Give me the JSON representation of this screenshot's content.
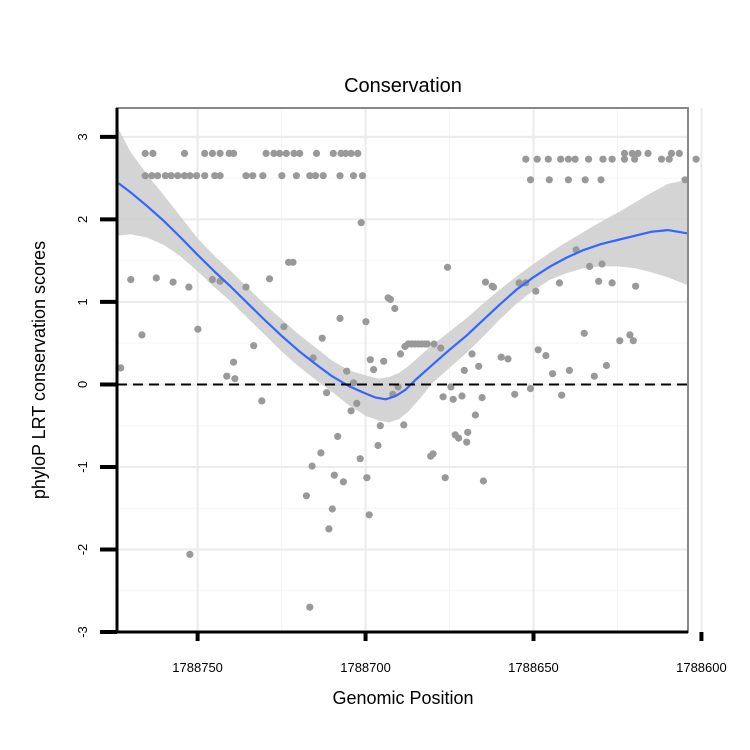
{
  "chart_data": {
    "type": "scatter",
    "title": "Conservation",
    "xlabel": "Genomic Position",
    "ylabel": "phyloP LRT conservation scores",
    "x_reversed": true,
    "xlim": [
      1788774,
      1788604
    ],
    "ylim": [
      -3,
      3.35
    ],
    "x_ticks": [
      1788750,
      1788700,
      1788650,
      1788600
    ],
    "x_tick_labels": [
      "1788750",
      "1788700",
      "1788650",
      "1788600"
    ],
    "y_ticks": [
      -3,
      -2,
      -1,
      0,
      1,
      2,
      3
    ],
    "y_tick_labels": [
      "-3",
      "-2",
      "-1",
      "0",
      "1",
      "2",
      "3"
    ],
    "reference_line": {
      "y": 0,
      "style": "dashed",
      "color": "#000000"
    },
    "colors": {
      "points": "#999999",
      "smooth_line": "#3366FF",
      "confidence_band": "#CCCCCC",
      "panel_border": "#888888",
      "grid_major": "#EBEBEB",
      "grid_minor": "#F5F5F5"
    },
    "series": [
      {
        "name": "phyloP scores",
        "kind": "points",
        "points": [
          [
            1788765.6,
            2.8
          ],
          [
            1788763.3,
            2.8
          ],
          [
            1788753.9,
            2.8
          ],
          [
            1788747.9,
            2.8
          ],
          [
            1788745.6,
            2.8
          ],
          [
            1788743.3,
            2.8
          ],
          [
            1788740.6,
            2.8
          ],
          [
            1788739.3,
            2.8
          ],
          [
            1788729.6,
            2.8
          ],
          [
            1788727.3,
            2.8
          ],
          [
            1788725.6,
            2.8
          ],
          [
            1788723.6,
            2.8
          ],
          [
            1788721.3,
            2.8
          ],
          [
            1788719.6,
            2.8
          ],
          [
            1788714.6,
            2.8
          ],
          [
            1788709.6,
            2.8
          ],
          [
            1788707.3,
            2.8
          ],
          [
            1788705.9,
            2.8
          ],
          [
            1788704.3,
            2.8
          ],
          [
            1788702.3,
            2.8
          ],
          [
            1788765.6,
            2.53
          ],
          [
            1788763.6,
            2.53
          ],
          [
            1788761.9,
            2.53
          ],
          [
            1788759.6,
            2.53
          ],
          [
            1788757.9,
            2.53
          ],
          [
            1788755.9,
            2.53
          ],
          [
            1788753.9,
            2.53
          ],
          [
            1788752.3,
            2.53
          ],
          [
            1788750.3,
            2.53
          ],
          [
            1788747.9,
            2.53
          ],
          [
            1788744.9,
            2.53
          ],
          [
            1788743.3,
            2.53
          ],
          [
            1788735.6,
            2.53
          ],
          [
            1788733.6,
            2.53
          ],
          [
            1788730.6,
            2.53
          ],
          [
            1788724.9,
            2.53
          ],
          [
            1788720.6,
            2.53
          ],
          [
            1788716.6,
            2.53
          ],
          [
            1788714.9,
            2.53
          ],
          [
            1788712.6,
            2.53
          ],
          [
            1788707.6,
            2.53
          ],
          [
            1788703.6,
            2.53
          ],
          [
            1788700.9,
            2.53
          ],
          [
            1788652.3,
            2.73
          ],
          [
            1788648.9,
            2.73
          ],
          [
            1788645.6,
            2.73
          ],
          [
            1788641.9,
            2.73
          ],
          [
            1788639.6,
            2.73
          ],
          [
            1788637.6,
            2.73
          ],
          [
            1788633.6,
            2.73
          ],
          [
            1788629.3,
            2.73
          ],
          [
            1788626.6,
            2.73
          ],
          [
            1788622.9,
            2.73
          ],
          [
            1788619.9,
            2.73
          ],
          [
            1788611.9,
            2.73
          ],
          [
            1788609.6,
            2.73
          ],
          [
            1788601.6,
            2.73
          ],
          [
            1788622.9,
            2.8
          ],
          [
            1788620.6,
            2.8
          ],
          [
            1788618.9,
            2.8
          ],
          [
            1788615.9,
            2.8
          ],
          [
            1788608.9,
            2.8
          ],
          [
            1788606.6,
            2.8
          ],
          [
            1788650.9,
            2.48
          ],
          [
            1788645.3,
            2.48
          ],
          [
            1788639.6,
            2.48
          ],
          [
            1788634.6,
            2.48
          ],
          [
            1788629.9,
            2.48
          ],
          [
            1788604.9,
            2.48
          ],
          [
            1788772.9,
            0.2
          ],
          [
            1788769.9,
            1.27
          ],
          [
            1788766.6,
            0.6
          ],
          [
            1788762.3,
            1.29
          ],
          [
            1788757.3,
            1.24
          ],
          [
            1788752.3,
            -2.06
          ],
          [
            1788752.6,
            1.18
          ],
          [
            1788749.9,
            0.67
          ],
          [
            1788745.6,
            1.27
          ],
          [
            1788743.3,
            1.25
          ],
          [
            1788741.3,
            0.1
          ],
          [
            1788739.3,
            0.27
          ],
          [
            1788738.9,
            0.07
          ],
          [
            1788735.6,
            1.18
          ],
          [
            1788733.3,
            0.47
          ],
          [
            1788730.9,
            -0.2
          ],
          [
            1788728.6,
            1.28
          ],
          [
            1788724.3,
            0.7
          ],
          [
            1788722.9,
            1.48
          ],
          [
            1788721.6,
            1.48
          ],
          [
            1788717.6,
            -1.35
          ],
          [
            1788716.6,
            -2.7
          ],
          [
            1788715.9,
            -0.99
          ],
          [
            1788715.6,
            0.32
          ],
          [
            1788713.3,
            -0.83
          ],
          [
            1788712.9,
            0.56
          ],
          [
            1788711.6,
            -0.1
          ],
          [
            1788710.9,
            -1.75
          ],
          [
            1788709.9,
            -1.51
          ],
          [
            1788709.3,
            -1.1
          ],
          [
            1788708.3,
            -0.63
          ],
          [
            1788707.6,
            0.8
          ],
          [
            1788706.6,
            -1.18
          ],
          [
            1788705.6,
            0.16
          ],
          [
            1788704.3,
            -0.32
          ],
          [
            1788703.6,
            0.02
          ],
          [
            1788702.6,
            -0.23
          ],
          [
            1788701.6,
            -0.9
          ],
          [
            1788701.3,
            1.96
          ],
          [
            1788699.9,
            0.76
          ],
          [
            1788699.6,
            -1.13
          ],
          [
            1788698.9,
            -1.58
          ],
          [
            1788698.6,
            0.3
          ],
          [
            1788697.6,
            0.18
          ],
          [
            1788696.3,
            -0.74
          ],
          [
            1788695.6,
            -0.5
          ],
          [
            1788694.6,
            0.28
          ],
          [
            1788693.3,
            1.05
          ],
          [
            1788692.6,
            1.03
          ],
          [
            1788691.9,
            -0.12
          ],
          [
            1788691.3,
            0.92
          ],
          [
            1788690.3,
            -0.03
          ],
          [
            1788689.6,
            0.37
          ],
          [
            1788688.6,
            -0.49
          ],
          [
            1788688.3,
            0.46
          ],
          [
            1788687.3,
            0.49
          ],
          [
            1788686.3,
            0.49
          ],
          [
            1788685.3,
            0.49
          ],
          [
            1788684.3,
            0.49
          ],
          [
            1788683.3,
            0.49
          ],
          [
            1788682.3,
            0.49
          ],
          [
            1788681.6,
            0.49
          ],
          [
            1788680.6,
            -0.87
          ],
          [
            1788679.9,
            -0.84
          ],
          [
            1788679.6,
            0.49
          ],
          [
            1788677.6,
            0.44
          ],
          [
            1788676.9,
            -0.15
          ],
          [
            1788676.3,
            -1.13
          ],
          [
            1788675.6,
            1.42
          ],
          [
            1788674.6,
            -0.03
          ],
          [
            1788673.9,
            -0.18
          ],
          [
            1788673.3,
            -0.61
          ],
          [
            1788672.3,
            -0.65
          ],
          [
            1788671.3,
            -0.14
          ],
          [
            1788670.6,
            0.17
          ],
          [
            1788669.9,
            -0.7
          ],
          [
            1788669.6,
            -0.58
          ],
          [
            1788668.3,
            0.37
          ],
          [
            1788667.3,
            -0.37
          ],
          [
            1788666.3,
            0.22
          ],
          [
            1788665.3,
            -0.16
          ],
          [
            1788664.9,
            -1.17
          ],
          [
            1788664.3,
            1.24
          ],
          [
            1788662.3,
            1.19
          ],
          [
            1788661.9,
            1.18
          ],
          [
            1788659.6,
            0.33
          ],
          [
            1788657.6,
            0.31
          ],
          [
            1788655.6,
            -0.12
          ],
          [
            1788654.3,
            1.23
          ],
          [
            1788652.3,
            1.23
          ],
          [
            1788650.9,
            -0.05
          ],
          [
            1788649.3,
            1.13
          ],
          [
            1788648.6,
            0.42
          ],
          [
            1788646.3,
            0.35
          ],
          [
            1788644.3,
            0.13
          ],
          [
            1788642.3,
            1.23
          ],
          [
            1788641.6,
            -0.13
          ],
          [
            1788639.3,
            0.17
          ],
          [
            1788637.3,
            1.63
          ],
          [
            1788634.9,
            0.62
          ],
          [
            1788633.3,
            1.43
          ],
          [
            1788631.9,
            0.1
          ],
          [
            1788630.6,
            1.25
          ],
          [
            1788629.6,
            1.46
          ],
          [
            1788628.3,
            0.23
          ],
          [
            1788626.6,
            1.23
          ],
          [
            1788624.3,
            0.53
          ],
          [
            1788621.3,
            0.6
          ],
          [
            1788620.3,
            0.53
          ],
          [
            1788619.6,
            1.19
          ]
        ]
      },
      {
        "name": "loess smooth",
        "kind": "line",
        "points": [
          [
            1788773.6,
            2.44
          ],
          [
            1788770,
            2.33
          ],
          [
            1788765,
            2.16
          ],
          [
            1788760,
            1.98
          ],
          [
            1788755,
            1.78
          ],
          [
            1788750,
            1.57
          ],
          [
            1788745,
            1.37
          ],
          [
            1788740,
            1.18
          ],
          [
            1788735,
            0.98
          ],
          [
            1788730,
            0.78
          ],
          [
            1788725,
            0.59
          ],
          [
            1788720,
            0.41
          ],
          [
            1788715,
            0.25
          ],
          [
            1788710,
            0.1
          ],
          [
            1788705,
            -0.02
          ],
          [
            1788700,
            -0.11
          ],
          [
            1788697,
            -0.16
          ],
          [
            1788694,
            -0.18
          ],
          [
            1788691,
            -0.14
          ],
          [
            1788688,
            -0.06
          ],
          [
            1788685,
            0.06
          ],
          [
            1788680,
            0.24
          ],
          [
            1788675,
            0.42
          ],
          [
            1788670,
            0.59
          ],
          [
            1788665,
            0.78
          ],
          [
            1788660,
            0.97
          ],
          [
            1788655,
            1.15
          ],
          [
            1788650,
            1.3
          ],
          [
            1788645,
            1.43
          ],
          [
            1788640,
            1.54
          ],
          [
            1788635,
            1.63
          ],
          [
            1788630,
            1.7
          ],
          [
            1788625,
            1.75
          ],
          [
            1788620,
            1.8
          ],
          [
            1788615,
            1.85
          ],
          [
            1788610,
            1.87
          ],
          [
            1788604,
            1.83
          ]
        ]
      },
      {
        "name": "confidence band",
        "kind": "ribbon",
        "points": [
          [
            1788774,
            1.8,
            3.13
          ],
          [
            1788770,
            1.82,
            2.82
          ],
          [
            1788765,
            1.78,
            2.54
          ],
          [
            1788760,
            1.69,
            2.29
          ],
          [
            1788755,
            1.55,
            2.03
          ],
          [
            1788750,
            1.37,
            1.77
          ],
          [
            1788745,
            1.18,
            1.56
          ],
          [
            1788740,
            1.0,
            1.37
          ],
          [
            1788735,
            0.8,
            1.17
          ],
          [
            1788730,
            0.6,
            0.97
          ],
          [
            1788725,
            0.4,
            0.79
          ],
          [
            1788720,
            0.22,
            0.61
          ],
          [
            1788715,
            0.06,
            0.45
          ],
          [
            1788710,
            -0.09,
            0.29
          ],
          [
            1788705,
            -0.25,
            0.17
          ],
          [
            1788700,
            -0.38,
            0.11
          ],
          [
            1788696,
            -0.44,
            0.07
          ],
          [
            1788693,
            -0.46,
            0.09
          ],
          [
            1788690,
            -0.42,
            0.14
          ],
          [
            1788687,
            -0.32,
            0.23
          ],
          [
            1788684,
            -0.18,
            0.34
          ],
          [
            1788680,
            0.02,
            0.48
          ],
          [
            1788675,
            0.2,
            0.64
          ],
          [
            1788670,
            0.38,
            0.8
          ],
          [
            1788665,
            0.58,
            0.98
          ],
          [
            1788660,
            0.79,
            1.15
          ],
          [
            1788655,
            0.98,
            1.31
          ],
          [
            1788650,
            1.14,
            1.46
          ],
          [
            1788645,
            1.27,
            1.6
          ],
          [
            1788640,
            1.35,
            1.73
          ],
          [
            1788635,
            1.41,
            1.85
          ],
          [
            1788630,
            1.43,
            1.97
          ],
          [
            1788625,
            1.43,
            2.08
          ],
          [
            1788620,
            1.41,
            2.2
          ],
          [
            1788615,
            1.36,
            2.32
          ],
          [
            1788610,
            1.3,
            2.43
          ],
          [
            1788604,
            1.2,
            2.48
          ]
        ]
      }
    ]
  }
}
